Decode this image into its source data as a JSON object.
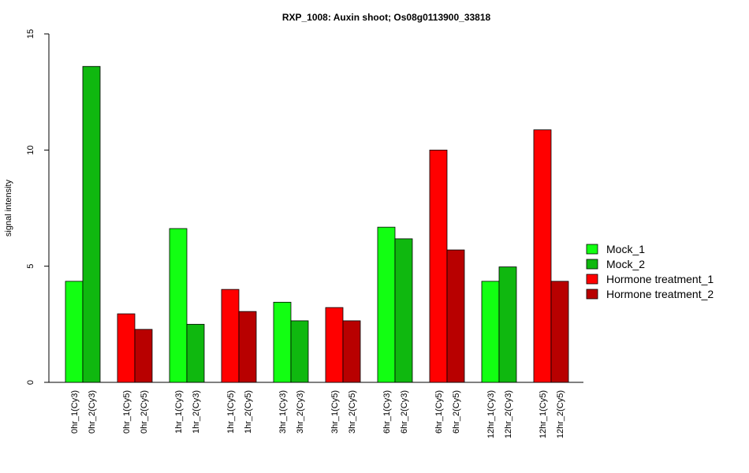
{
  "chart_data": {
    "type": "bar",
    "title": "RXP_1008: Auxin shoot; Os08g0113900_33818",
    "xlabel": "",
    "ylabel": "signal intensity",
    "ylim": [
      0,
      15
    ],
    "yticks": [
      0,
      5,
      10,
      15
    ],
    "grid": false,
    "legend_position": "right",
    "categories": [
      "0hr_1(Cy3)",
      "0hr_2(Cy3)",
      "0hr_1(Cy5)",
      "0hr_2(Cy5)",
      "1hr_1(Cy3)",
      "1hr_2(Cy3)",
      "1hr_1(Cy5)",
      "1hr_2(Cy5)",
      "3hr_1(Cy3)",
      "3hr_2(Cy3)",
      "3hr_1(Cy5)",
      "3hr_2(Cy5)",
      "6hr_1(Cy3)",
      "6hr_2(Cy3)",
      "6hr_1(Cy5)",
      "6hr_2(Cy5)",
      "12hr_1(Cy3)",
      "12hr_2(Cy3)",
      "12hr_1(Cy5)",
      "12hr_2(Cy5)"
    ],
    "values": [
      4.35,
      13.6,
      2.95,
      2.28,
      6.62,
      2.5,
      4.0,
      3.05,
      3.45,
      2.65,
      3.22,
      2.65,
      6.68,
      6.18,
      10.0,
      5.7,
      4.35,
      4.97,
      10.87,
      4.35
    ],
    "bar_series": [
      0,
      1,
      2,
      3,
      0,
      1,
      2,
      3,
      0,
      1,
      2,
      3,
      0,
      1,
      2,
      3,
      0,
      1,
      2,
      3
    ],
    "series": [
      {
        "name": "Mock_1",
        "color": "#12ff12"
      },
      {
        "name": "Mock_2",
        "color": "#0fb80f"
      },
      {
        "name": "Hormone treatment_1",
        "color": "#ff0000"
      },
      {
        "name": "Hormone treatment_2",
        "color": "#b80000"
      }
    ]
  }
}
